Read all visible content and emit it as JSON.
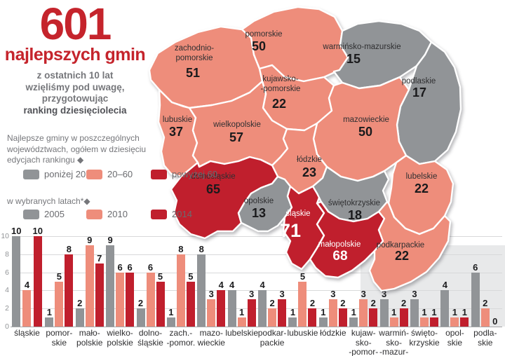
{
  "header": {
    "big_number": "601",
    "subtitle": "najlepszych gmin",
    "description_lines": [
      "z ostatnich 10 lat",
      "wzięliśmy pod uwagę,",
      "przygotowując"
    ],
    "description_bold": "ranking dziesięciolecia"
  },
  "legend_total": {
    "caption_lines": [
      "Najlepsze gminy w poszczególnych",
      "województwach, ogółem w dziesięciu",
      "edycjach rankingu ◆"
    ],
    "items": [
      {
        "label": "poniżej 20",
        "color": "#919497"
      },
      {
        "label": "20–60",
        "color": "#ee8d7b"
      },
      {
        "label": "powyżej 60",
        "color": "#c01f2d"
      }
    ]
  },
  "legend_years": {
    "caption": "w wybranych latach*◆",
    "items": [
      {
        "label": "2005",
        "color": "#919497"
      },
      {
        "label": "2010",
        "color": "#ee8d7b"
      },
      {
        "label": "2014",
        "color": "#c01f2d"
      }
    ]
  },
  "map": {
    "category_colors": {
      "low": "#919497",
      "mid": "#ee8d7b",
      "high": "#c01f2d"
    },
    "regions": [
      {
        "id": "zachodniopomorskie",
        "name_lines": [
          "zachodnio-",
          "pomorskie"
        ],
        "value": "51",
        "category": "mid"
      },
      {
        "id": "pomorskie",
        "name_lines": [
          "pomorskie"
        ],
        "value": "50",
        "category": "mid"
      },
      {
        "id": "warminsko-mazurskie",
        "name_lines": [
          "warmińsko-mazurskie"
        ],
        "value": "15",
        "category": "low"
      },
      {
        "id": "podlaskie",
        "name_lines": [
          "podlaskie"
        ],
        "value": "17",
        "category": "low"
      },
      {
        "id": "kujawsko-pomorskie",
        "name_lines": [
          "kujawsko-",
          "-pomorskie"
        ],
        "value": "22",
        "category": "mid"
      },
      {
        "id": "mazowieckie",
        "name_lines": [
          "mazowieckie"
        ],
        "value": "50",
        "category": "mid"
      },
      {
        "id": "lubuskie",
        "name_lines": [
          "lubuskie"
        ],
        "value": "37",
        "category": "mid"
      },
      {
        "id": "wielkopolskie",
        "name_lines": [
          "wielkopolskie"
        ],
        "value": "57",
        "category": "mid"
      },
      {
        "id": "lodzkie",
        "name_lines": [
          "łódzkie"
        ],
        "value": "23",
        "category": "mid"
      },
      {
        "id": "lubelskie",
        "name_lines": [
          "lubelskie"
        ],
        "value": "22",
        "category": "mid"
      },
      {
        "id": "dolnoslaskie",
        "name_lines": [
          "dolnośląskie"
        ],
        "value": "65",
        "category": "high"
      },
      {
        "id": "opolskie",
        "name_lines": [
          "opolskie"
        ],
        "value": "13",
        "category": "low"
      },
      {
        "id": "slaskie",
        "name_lines": [
          "śląskie"
        ],
        "value": "71",
        "category": "high"
      },
      {
        "id": "swietokrzyskie",
        "name_lines": [
          "świętokrzyskie"
        ],
        "value": "18",
        "category": "low"
      },
      {
        "id": "malopolskie",
        "name_lines": [
          "małopolskie"
        ],
        "value": "68",
        "category": "high"
      },
      {
        "id": "podkarpackie",
        "name_lines": [
          "podkarpackie"
        ],
        "value": "22",
        "category": "mid"
      }
    ]
  },
  "chart_data": {
    "type": "bar",
    "categories": [
      "śląskie",
      "pomorskie",
      "małopolskie",
      "wielkopolskie",
      "dolnośląskie",
      "zachodniopomorskie",
      "mazowieckie",
      "lubelskie",
      "podkarpackie",
      "lubuskie",
      "łódzkie",
      "kujawsko-pomorskie",
      "warmińsko-mazurskie",
      "świętokrzyskie",
      "opolskie",
      "podlaskie"
    ],
    "category_label_lines": [
      [
        "śląskie"
      ],
      [
        "pomor-",
        "skie"
      ],
      [
        "mało-",
        "polskie"
      ],
      [
        "wielko-",
        "polskie"
      ],
      [
        "dolno-",
        "śląskie"
      ],
      [
        "zach.-",
        "-pomor."
      ],
      [
        "mazo-",
        "wieckie"
      ],
      [
        "lubelskie"
      ],
      [
        "podkar-",
        "packie"
      ],
      [
        "lubuskie"
      ],
      [
        "łódzkie"
      ],
      [
        "kujaw-",
        "sko-",
        "-pomor-"
      ],
      [
        "warmiń-",
        "sko-",
        "-mazur-"
      ],
      [
        "święto-",
        "krzyskie"
      ],
      [
        "opol-",
        "skie"
      ],
      [
        "podla-",
        "skie"
      ]
    ],
    "series": [
      {
        "name": "2005",
        "color": "#919497",
        "values": [
          10,
          1,
          2,
          9,
          2,
          1,
          8,
          4,
          4,
          1,
          1,
          1,
          3,
          3,
          4,
          6
        ]
      },
      {
        "name": "2010",
        "color": "#ee8d7b",
        "values": [
          4,
          5,
          9,
          6,
          6,
          8,
          3,
          1,
          2,
          5,
          3,
          3,
          1,
          1,
          1,
          2
        ]
      },
      {
        "name": "2014",
        "color": "#c01f2d",
        "values": [
          10,
          8,
          7,
          6,
          5,
          5,
          4,
          3,
          3,
          2,
          2,
          2,
          2,
          1,
          1,
          0
        ]
      }
    ],
    "ylim": [
      0,
      10
    ],
    "yticks": [
      0,
      2,
      4,
      6,
      8,
      10
    ],
    "grid": true,
    "legend_position": "top-left"
  }
}
